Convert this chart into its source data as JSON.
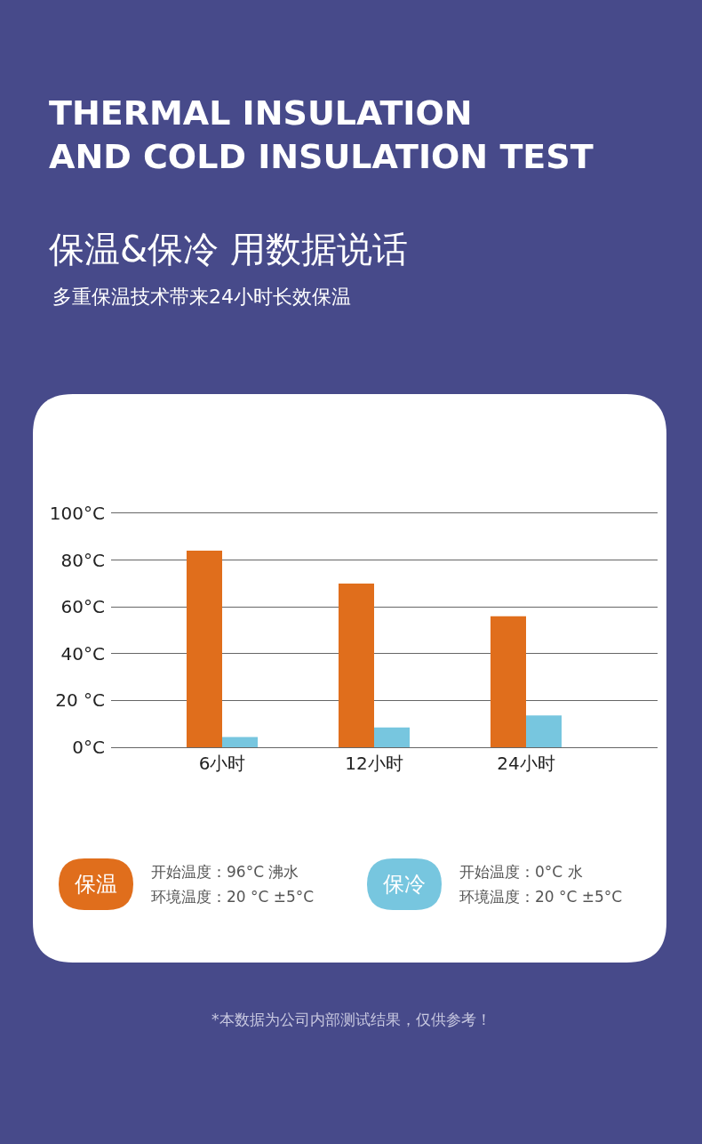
{
  "chart_data": {
    "type": "bar",
    "title": "THERMAL INSULATION\nAND COLD INSULATION TEST",
    "subtitle": "保温&保冷 用数据说话",
    "categories": [
      "6小时",
      "12小时",
      "24小时"
    ],
    "series": [
      {
        "name": "保温",
        "color": "#e06e1c",
        "values": [
          84,
          70,
          56
        ]
      },
      {
        "name": "保冷",
        "color": "#77c6df",
        "values": [
          4.4,
          8.5,
          13.6
        ]
      }
    ],
    "ylim": [
      0,
      100
    ],
    "yticks": [
      {
        "value": 0,
        "label": "0°C"
      },
      {
        "value": 20,
        "label": "20 °C"
      },
      {
        "value": 40,
        "label": "40°C"
      },
      {
        "value": 60,
        "label": "60°C"
      },
      {
        "value": 80,
        "label": "80°C"
      },
      {
        "value": 100,
        "label": "100°C"
      }
    ],
    "grid": "y",
    "legend": "bottom",
    "annotations": [
      "多重保温技术带来24小时长效保温",
      "开始温度：96°C 沸水",
      "环境温度：20 °C ±5°C",
      "开始温度：0°C 水",
      "环境温度：20 °C ±5°C",
      "*本数据为公司内部测试结果，仅供参考！"
    ]
  }
}
